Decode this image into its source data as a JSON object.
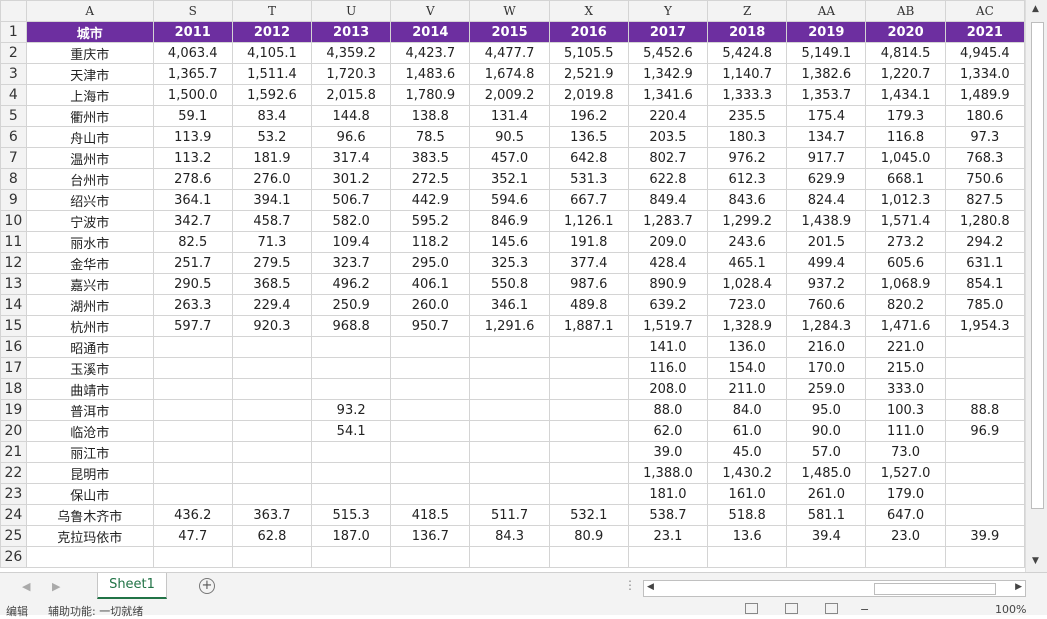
{
  "sheet": {
    "column_letters": [
      "A",
      "S",
      "T",
      "U",
      "V",
      "W",
      "X",
      "Y",
      "Z",
      "AA",
      "AB",
      "AC"
    ],
    "header_row": [
      "城市",
      "2011",
      "2012",
      "2013",
      "2014",
      "2015",
      "2016",
      "2017",
      "2018",
      "2019",
      "2020",
      "2021"
    ],
    "row_numbers": [
      "1",
      "2",
      "3",
      "4",
      "5",
      "6",
      "7",
      "8",
      "9",
      "10",
      "11",
      "12",
      "13",
      "14",
      "15",
      "16",
      "17",
      "18",
      "19",
      "20",
      "21",
      "22",
      "23",
      "24",
      "25",
      "26"
    ],
    "rows": [
      [
        "重庆市",
        "4,063.4",
        "4,105.1",
        "4,359.2",
        "4,423.7",
        "4,477.7",
        "5,105.5",
        "5,452.6",
        "5,424.8",
        "5,149.1",
        "4,814.5",
        "4,945.4"
      ],
      [
        "天津市",
        "1,365.7",
        "1,511.4",
        "1,720.3",
        "1,483.6",
        "1,674.8",
        "2,521.9",
        "1,342.9",
        "1,140.7",
        "1,382.6",
        "1,220.7",
        "1,334.0"
      ],
      [
        "上海市",
        "1,500.0",
        "1,592.6",
        "2,015.8",
        "1,780.9",
        "2,009.2",
        "2,019.8",
        "1,341.6",
        "1,333.3",
        "1,353.7",
        "1,434.1",
        "1,489.9"
      ],
      [
        "衢州市",
        "59.1",
        "83.4",
        "144.8",
        "138.8",
        "131.4",
        "196.2",
        "220.4",
        "235.5",
        "175.4",
        "179.3",
        "180.6"
      ],
      [
        "舟山市",
        "113.9",
        "53.2",
        "96.6",
        "78.5",
        "90.5",
        "136.5",
        "203.5",
        "180.3",
        "134.7",
        "116.8",
        "97.3"
      ],
      [
        "温州市",
        "113.2",
        "181.9",
        "317.4",
        "383.5",
        "457.0",
        "642.8",
        "802.7",
        "976.2",
        "917.7",
        "1,045.0",
        "768.3"
      ],
      [
        "台州市",
        "278.6",
        "276.0",
        "301.2",
        "272.5",
        "352.1",
        "531.3",
        "622.8",
        "612.3",
        "629.9",
        "668.1",
        "750.6"
      ],
      [
        "绍兴市",
        "364.1",
        "394.1",
        "506.7",
        "442.9",
        "594.6",
        "667.7",
        "849.4",
        "843.6",
        "824.4",
        "1,012.3",
        "827.5"
      ],
      [
        "宁波市",
        "342.7",
        "458.7",
        "582.0",
        "595.2",
        "846.9",
        "1,126.1",
        "1,283.7",
        "1,299.2",
        "1,438.9",
        "1,571.4",
        "1,280.8"
      ],
      [
        "丽水市",
        "82.5",
        "71.3",
        "109.4",
        "118.2",
        "145.6",
        "191.8",
        "209.0",
        "243.6",
        "201.5",
        "273.2",
        "294.2"
      ],
      [
        "金华市",
        "251.7",
        "279.5",
        "323.7",
        "295.0",
        "325.3",
        "377.4",
        "428.4",
        "465.1",
        "499.4",
        "605.6",
        "631.1"
      ],
      [
        "嘉兴市",
        "290.5",
        "368.5",
        "496.2",
        "406.1",
        "550.8",
        "987.6",
        "890.9",
        "1,028.4",
        "937.2",
        "1,068.9",
        "854.1"
      ],
      [
        "湖州市",
        "263.3",
        "229.4",
        "250.9",
        "260.0",
        "346.1",
        "489.8",
        "639.2",
        "723.0",
        "760.6",
        "820.2",
        "785.0"
      ],
      [
        "杭州市",
        "597.7",
        "920.3",
        "968.8",
        "950.7",
        "1,291.6",
        "1,887.1",
        "1,519.7",
        "1,328.9",
        "1,284.3",
        "1,471.6",
        "1,954.3"
      ],
      [
        "昭通市",
        "",
        "",
        "",
        "",
        "",
        "",
        "141.0",
        "136.0",
        "216.0",
        "221.0",
        ""
      ],
      [
        "玉溪市",
        "",
        "",
        "",
        "",
        "",
        "",
        "116.0",
        "154.0",
        "170.0",
        "215.0",
        ""
      ],
      [
        "曲靖市",
        "",
        "",
        "",
        "",
        "",
        "",
        "208.0",
        "211.0",
        "259.0",
        "333.0",
        ""
      ],
      [
        "普洱市",
        "",
        "",
        "93.2",
        "",
        "",
        "",
        "88.0",
        "84.0",
        "95.0",
        "100.3",
        "88.8"
      ],
      [
        "临沧市",
        "",
        "",
        "54.1",
        "",
        "",
        "",
        "62.0",
        "61.0",
        "90.0",
        "111.0",
        "96.9"
      ],
      [
        "丽江市",
        "",
        "",
        "",
        "",
        "",
        "",
        "39.0",
        "45.0",
        "57.0",
        "73.0",
        ""
      ],
      [
        "昆明市",
        "",
        "",
        "",
        "",
        "",
        "",
        "1,388.0",
        "1,430.2",
        "1,485.0",
        "1,527.0",
        ""
      ],
      [
        "保山市",
        "",
        "",
        "",
        "",
        "",
        "",
        "181.0",
        "161.0",
        "261.0",
        "179.0",
        ""
      ],
      [
        "乌鲁木齐市",
        "436.2",
        "363.7",
        "515.3",
        "418.5",
        "511.7",
        "532.1",
        "538.7",
        "518.8",
        "581.1",
        "647.0",
        ""
      ],
      [
        "克拉玛依市",
        "47.7",
        "62.8",
        "187.0",
        "136.7",
        "84.3",
        "80.9",
        "23.1",
        "13.6",
        "39.4",
        "23.0",
        "39.9"
      ],
      [
        "",
        "",
        "",
        "",
        "",
        "",
        "",
        "",
        "",
        "",
        "",
        ""
      ]
    ]
  },
  "tabs": {
    "sheet1": "Sheet1",
    "add_icon": "plus-circle-icon",
    "add_symbol": "+"
  },
  "status": {
    "mode": "编辑",
    "accessibility": "辅助功能: 一切就绪",
    "zoom": "100%"
  },
  "colors": {
    "header_fill": "#6d2fa0",
    "header_text": "#ffffff",
    "tab_accent": "#217346"
  }
}
